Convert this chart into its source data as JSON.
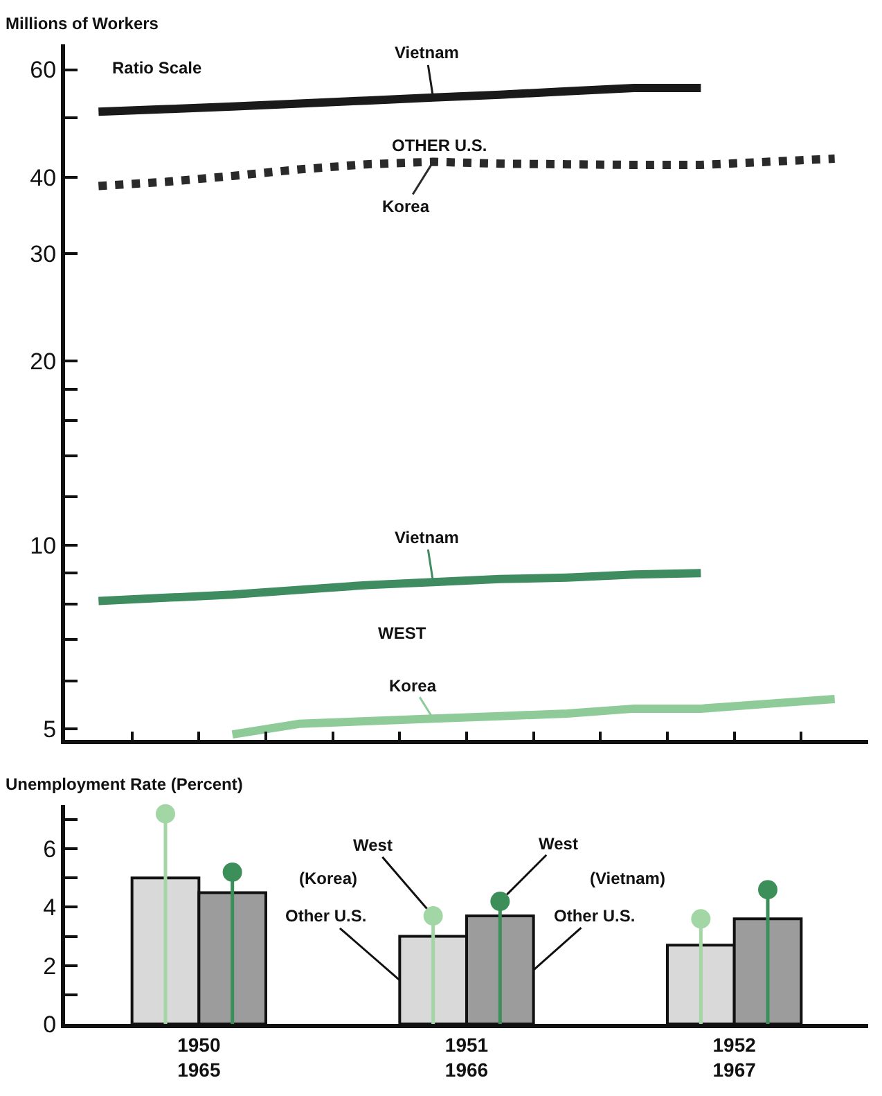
{
  "chart_data": [
    {
      "type": "line",
      "ylabel": "Millions of Workers",
      "log": true,
      "categories": [
        null,
        null,
        null,
        null,
        null,
        null,
        null,
        null,
        null,
        null,
        null,
        null
      ],
      "ylim": [
        4.8,
        66
      ],
      "yticks": [
        5,
        {
          "value": 6,
          "label": null
        },
        {
          "value": 7,
          "label": null
        },
        {
          "value": 8,
          "label": null
        },
        {
          "value": 9,
          "label": null
        },
        10,
        {
          "value": 12,
          "label": null
        },
        {
          "value": 14,
          "label": null
        },
        {
          "value": 16,
          "label": null
        },
        {
          "value": 18,
          "label": null
        },
        20,
        30,
        40,
        {
          "value": 50,
          "label": null
        },
        60
      ],
      "series": [
        {
          "name": "Vietnam",
          "color": "#1a1a1a",
          "values": [
            51.2,
            51.7,
            52.2,
            52.8,
            53.4,
            54.0,
            54.6,
            55.3,
            56.0,
            56.0,
            null,
            null
          ]
        },
        {
          "name": "Korea",
          "color": "#2a2a2a",
          "line_style": "dotted",
          "values": [
            38.7,
            39.3,
            40.2,
            41.2,
            42.0,
            42.4,
            42.1,
            42.0,
            41.9,
            41.9,
            42.4,
            42.9
          ]
        },
        {
          "name": "Vietnam",
          "color": "#3f8c60",
          "values": [
            8.1,
            8.2,
            8.3,
            8.45,
            8.6,
            8.7,
            8.8,
            8.85,
            8.95,
            9.0,
            null,
            null
          ]
        },
        {
          "name": "Korea",
          "color": "#8fcb98",
          "values": [
            null,
            null,
            4.9,
            5.1,
            5.15,
            5.2,
            5.25,
            5.3,
            5.4,
            5.4,
            5.5,
            5.6
          ]
        }
      ],
      "annotations": [
        "Ratio Scale",
        "OTHER U.S.",
        "WEST"
      ]
    },
    {
      "type": "bar",
      "ylabel": "Unemployment Rate (Percent)",
      "categories": [
        "1950\n1965",
        "1951\n1966",
        "1952\n1967"
      ],
      "ylim": [
        0,
        7.5
      ],
      "yticks": [
        0,
        {
          "value": 1,
          "label": null
        },
        2,
        {
          "value": 3,
          "label": null
        },
        4,
        {
          "value": 5,
          "label": null
        },
        6,
        {
          "value": 7,
          "label": null
        }
      ],
      "series": [
        {
          "name": "Other U.S.",
          "color": "#d9d9d9",
          "values": [
            5.0,
            3.0,
            2.7
          ]
        },
        {
          "name": "Other U.S.",
          "color": "#9c9c9c",
          "values": [
            4.5,
            3.7,
            3.6
          ]
        },
        {
          "name": "West",
          "type": "lollipop",
          "color": "#a3d6a5",
          "values": [
            7.2,
            3.7,
            3.6
          ]
        },
        {
          "name": "West",
          "type": "lollipop",
          "color": "#3d8f5a",
          "values": [
            5.2,
            4.2,
            4.6
          ]
        }
      ],
      "annotations": [
        "(Korea)",
        "(Vietnam)"
      ]
    }
  ]
}
